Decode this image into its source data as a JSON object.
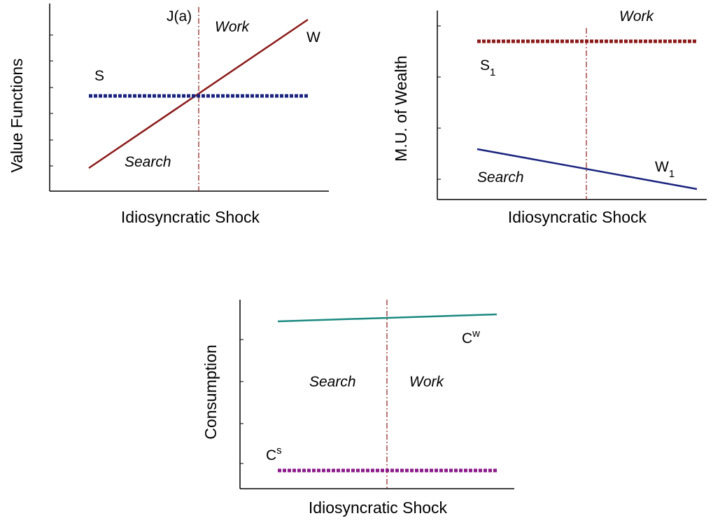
{
  "panels": [
    {
      "y_label": "Value Functions",
      "x_label": "Idiosyncratic Shock",
      "threshold": "J(a)",
      "right_region": "Work",
      "left_region": "Search",
      "line_a": "W",
      "line_b": "S"
    },
    {
      "y_label": "M.U. of Wealth",
      "x_label": "Idiosyncratic Shock",
      "right_region": "Work",
      "left_region": "Search",
      "line_a": {
        "base": "W",
        "sub": "1"
      },
      "line_b": {
        "base": "S",
        "sub": "1"
      }
    },
    {
      "y_label": "Consumption",
      "x_label": "Idiosyncratic Shock",
      "right_region": "Work",
      "left_region": "Search",
      "line_a": {
        "base": "C",
        "sup": "w"
      },
      "line_b": {
        "base": "C",
        "sup": "s"
      }
    }
  ]
}
